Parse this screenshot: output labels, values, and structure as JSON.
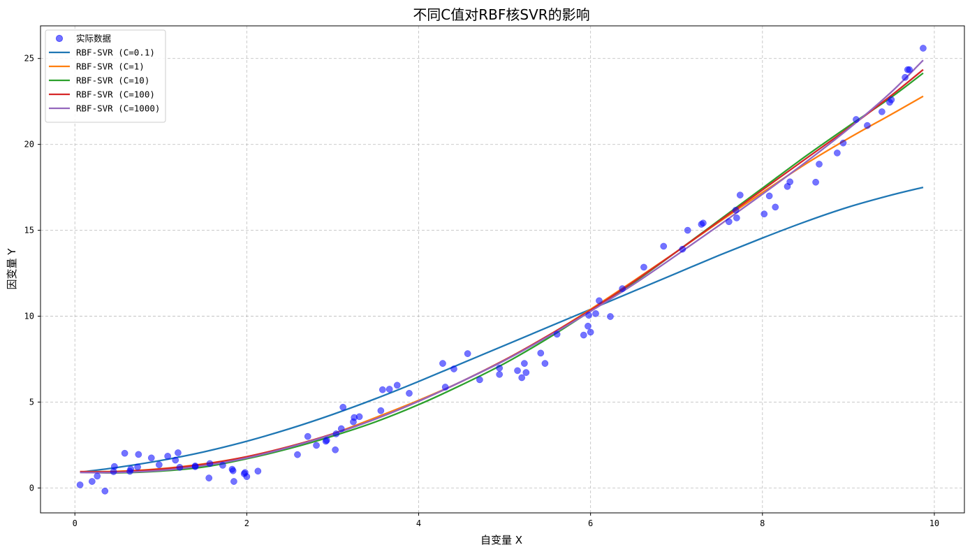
{
  "chart_data": {
    "type": "scatter",
    "title": "不同C值对RBF核SVR的影响",
    "xlabel": "自变量 X",
    "ylabel": "因变量 Y",
    "xlim": [
      -0.4,
      10.35
    ],
    "ylim": [
      -1.45,
      26.9
    ],
    "xticks": [
      0,
      2,
      4,
      6,
      8,
      10
    ],
    "yticks": [
      0,
      5,
      10,
      15,
      20,
      25
    ],
    "grid": true,
    "legend_position": "top-left",
    "scatter": {
      "name": "实际数据",
      "color": "#0000ff",
      "points": [
        [
          0.06,
          0.18
        ],
        [
          0.2,
          0.38
        ],
        [
          0.26,
          0.69
        ],
        [
          0.35,
          -0.18
        ],
        [
          0.45,
          0.95
        ],
        [
          0.46,
          1.25
        ],
        [
          0.58,
          2.02
        ],
        [
          0.64,
          0.97
        ],
        [
          0.65,
          1.1
        ],
        [
          0.73,
          1.22
        ],
        [
          0.74,
          1.95
        ],
        [
          0.89,
          1.75
        ],
        [
          0.98,
          1.35
        ],
        [
          1.08,
          1.85
        ],
        [
          1.17,
          1.62
        ],
        [
          1.2,
          2.05
        ],
        [
          1.22,
          1.2
        ],
        [
          1.4,
          1.28
        ],
        [
          1.4,
          1.24
        ],
        [
          1.56,
          0.58
        ],
        [
          1.57,
          1.42
        ],
        [
          1.72,
          1.32
        ],
        [
          1.83,
          1.09
        ],
        [
          1.84,
          1.0
        ],
        [
          1.85,
          0.38
        ],
        [
          1.97,
          0.83
        ],
        [
          1.98,
          0.9
        ],
        [
          2.0,
          0.66
        ],
        [
          2.13,
          0.98
        ],
        [
          2.59,
          1.94
        ],
        [
          2.71,
          3.0
        ],
        [
          2.81,
          2.48
        ],
        [
          2.92,
          2.72
        ],
        [
          2.93,
          2.78
        ],
        [
          3.03,
          2.22
        ],
        [
          3.04,
          3.15
        ],
        [
          3.1,
          3.45
        ],
        [
          3.12,
          4.7
        ],
        [
          3.24,
          3.85
        ],
        [
          3.25,
          4.1
        ],
        [
          3.31,
          4.15
        ],
        [
          3.56,
          4.5
        ],
        [
          3.58,
          5.72
        ],
        [
          3.66,
          5.75
        ],
        [
          3.75,
          5.98
        ],
        [
          3.89,
          5.51
        ],
        [
          4.28,
          7.25
        ],
        [
          4.31,
          5.87
        ],
        [
          4.41,
          6.93
        ],
        [
          4.57,
          7.82
        ],
        [
          4.71,
          6.3
        ],
        [
          4.94,
          6.98
        ],
        [
          4.94,
          6.61
        ],
        [
          5.15,
          6.83
        ],
        [
          5.2,
          6.42
        ],
        [
          5.23,
          7.25
        ],
        [
          5.25,
          6.72
        ],
        [
          5.42,
          7.85
        ],
        [
          5.47,
          7.25
        ],
        [
          5.61,
          8.95
        ],
        [
          5.92,
          8.9
        ],
        [
          5.97,
          9.42
        ],
        [
          5.98,
          10.05
        ],
        [
          6.0,
          9.07
        ],
        [
          6.06,
          10.15
        ],
        [
          6.1,
          10.9
        ],
        [
          6.23,
          9.98
        ],
        [
          6.37,
          11.6
        ],
        [
          6.62,
          12.85
        ],
        [
          6.85,
          14.07
        ],
        [
          7.07,
          13.9
        ],
        [
          7.13,
          15.0
        ],
        [
          7.29,
          15.35
        ],
        [
          7.31,
          15.42
        ],
        [
          7.61,
          15.5
        ],
        [
          7.69,
          16.17
        ],
        [
          7.7,
          15.72
        ],
        [
          7.74,
          17.05
        ],
        [
          8.02,
          15.95
        ],
        [
          8.08,
          17.0
        ],
        [
          8.15,
          16.35
        ],
        [
          8.29,
          17.55
        ],
        [
          8.32,
          17.82
        ],
        [
          8.62,
          17.8
        ],
        [
          8.66,
          18.85
        ],
        [
          8.87,
          19.5
        ],
        [
          8.94,
          20.08
        ],
        [
          9.09,
          21.45
        ],
        [
          9.22,
          21.1
        ],
        [
          9.39,
          21.9
        ],
        [
          9.48,
          22.45
        ],
        [
          9.5,
          22.6
        ],
        [
          9.66,
          23.9
        ],
        [
          9.69,
          24.35
        ],
        [
          9.71,
          24.35
        ],
        [
          9.87,
          25.6
        ]
      ]
    },
    "series": [
      {
        "name": "RBF-SVR (C=0.1)",
        "color": "#1f77b4",
        "x": [
          0.06,
          0.5,
          1.0,
          1.5,
          2.0,
          2.5,
          3.0,
          3.5,
          4.0,
          4.5,
          5.0,
          5.5,
          6.0,
          6.5,
          7.0,
          7.5,
          8.0,
          8.5,
          9.0,
          9.5,
          9.87
        ],
        "y": [
          0.92,
          1.2,
          1.6,
          2.1,
          2.72,
          3.45,
          4.28,
          5.2,
          6.2,
          7.25,
          8.3,
          9.35,
          10.4,
          11.45,
          12.5,
          13.55,
          14.55,
          15.5,
          16.35,
          17.05,
          17.5
        ]
      },
      {
        "name": "RBF-SVR (C=1)",
        "color": "#ff7f0e",
        "x": [
          0.06,
          0.5,
          1.0,
          1.5,
          2.0,
          2.5,
          3.0,
          3.5,
          4.0,
          4.5,
          5.0,
          5.5,
          6.0,
          6.5,
          7.0,
          7.5,
          8.0,
          8.5,
          9.0,
          9.5,
          9.87
        ],
        "y": [
          0.95,
          0.97,
          1.12,
          1.4,
          1.82,
          2.42,
          3.15,
          4.1,
          5.1,
          6.2,
          7.45,
          8.85,
          10.4,
          12.05,
          13.75,
          15.5,
          17.2,
          18.85,
          20.35,
          21.75,
          22.8
        ]
      },
      {
        "name": "RBF-SVR (C=10)",
        "color": "#2ca02c",
        "x": [
          0.06,
          0.5,
          1.0,
          1.5,
          2.0,
          2.5,
          3.0,
          3.5,
          4.0,
          4.5,
          5.0,
          5.5,
          6.0,
          6.5,
          7.0,
          7.5,
          8.0,
          8.5,
          9.0,
          9.5,
          9.87
        ],
        "y": [
          0.92,
          0.88,
          0.98,
          1.22,
          1.7,
          2.3,
          3.02,
          3.85,
          4.85,
          6.0,
          7.25,
          8.7,
          10.3,
          11.95,
          13.75,
          15.6,
          17.45,
          19.3,
          21.05,
          22.75,
          24.15
        ]
      },
      {
        "name": "RBF-SVR (C=100)",
        "color": "#d62728",
        "x": [
          0.06,
          0.5,
          1.0,
          1.5,
          2.0,
          2.5,
          3.0,
          3.5,
          4.0,
          4.5,
          5.0,
          5.5,
          6.0,
          6.5,
          7.0,
          7.5,
          8.0,
          8.5,
          9.0,
          9.5,
          9.87
        ],
        "y": [
          0.95,
          0.95,
          1.1,
          1.38,
          1.82,
          2.42,
          3.15,
          4.02,
          5.05,
          6.2,
          7.45,
          8.85,
          10.35,
          12.0,
          13.75,
          15.55,
          17.35,
          19.15,
          20.95,
          22.85,
          24.35
        ]
      },
      {
        "name": "RBF-SVR (C=1000)",
        "color": "#9467bd",
        "x": [
          0.06,
          0.5,
          1.0,
          1.5,
          2.0,
          2.5,
          3.0,
          3.5,
          4.0,
          4.5,
          5.0,
          5.5,
          6.0,
          6.5,
          7.0,
          7.5,
          8.0,
          8.5,
          9.0,
          9.5,
          9.87
        ],
        "y": [
          0.9,
          0.9,
          1.02,
          1.3,
          1.75,
          2.38,
          3.12,
          4.02,
          5.05,
          6.2,
          7.42,
          8.8,
          10.28,
          11.85,
          13.55,
          15.3,
          17.1,
          18.95,
          20.9,
          23.05,
          24.9
        ]
      }
    ]
  }
}
